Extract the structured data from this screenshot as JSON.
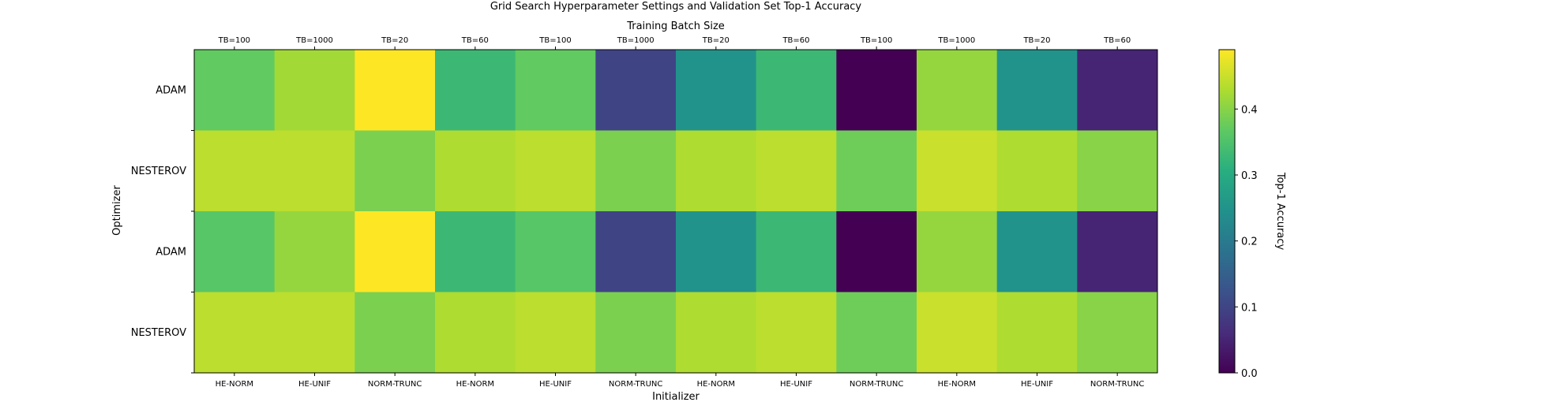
{
  "chart_data": {
    "type": "heatmap",
    "title": "Grid Search Hyperparameter Settings and Validation Set Top-1 Accuracy",
    "top_xlabel": "Training Batch Size",
    "xlabel": "Initializer",
    "ylabel": "Optimizer",
    "top_categories": [
      "TB=100",
      "TB=1000",
      "TB=20",
      "TB=60",
      "TB=100",
      "TB=1000",
      "TB=20",
      "TB=60",
      "TB=100",
      "TB=1000",
      "TB=20",
      "TB=60"
    ],
    "bottom_categories": [
      "HE-NORM",
      "HE-UNIF",
      "NORM-TRUNC",
      "HE-NORM",
      "HE-UNIF",
      "NORM-TRUNC",
      "HE-NORM",
      "HE-UNIF",
      "NORM-TRUNC",
      "HE-NORM",
      "HE-UNIF",
      "NORM-TRUNC"
    ],
    "y_categories": [
      "ADAM",
      "NESTEROV",
      "ADAM",
      "NESTEROV"
    ],
    "values": [
      [
        0.37,
        0.42,
        0.49,
        0.33,
        0.37,
        0.1,
        0.25,
        0.33,
        0.0,
        0.41,
        0.25,
        0.05
      ],
      [
        0.44,
        0.44,
        0.39,
        0.43,
        0.44,
        0.39,
        0.43,
        0.44,
        0.38,
        0.45,
        0.43,
        0.4
      ],
      [
        0.36,
        0.41,
        0.49,
        0.33,
        0.36,
        0.1,
        0.25,
        0.33,
        0.0,
        0.41,
        0.25,
        0.05
      ],
      [
        0.44,
        0.44,
        0.39,
        0.43,
        0.44,
        0.39,
        0.43,
        0.44,
        0.38,
        0.45,
        0.43,
        0.4
      ]
    ],
    "colormap": "viridis",
    "vlim": [
      0.0,
      0.49
    ],
    "colorbar": {
      "label": "Top-1 Accuracy",
      "ticks": [
        0.0,
        0.1,
        0.2,
        0.3,
        0.4
      ],
      "tick_labels": [
        "0.0",
        "0.1",
        "0.2",
        "0.3",
        "0.4"
      ]
    },
    "grid": false
  }
}
